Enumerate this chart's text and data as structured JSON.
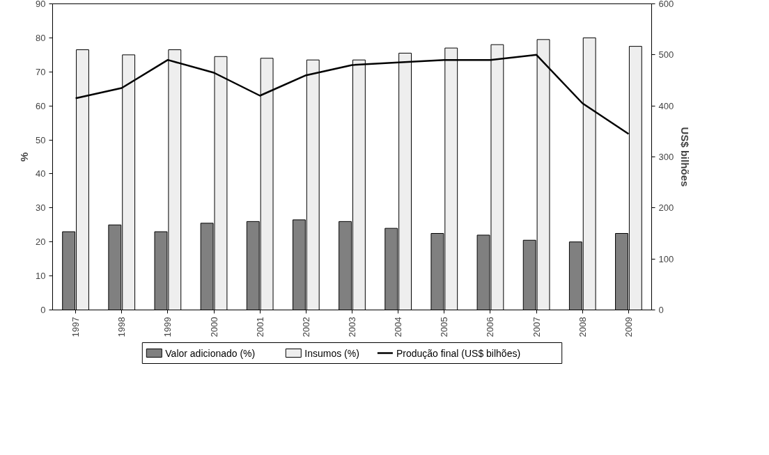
{
  "chart_data": {
    "type": "bar",
    "categories": [
      "1997",
      "1998",
      "1999",
      "2000",
      "2001",
      "2002",
      "2003",
      "2004",
      "2005",
      "2006",
      "2007",
      "2008",
      "2009"
    ],
    "ylabel": "%",
    "y2label": "US$ bilhões",
    "ylim": [
      0,
      90
    ],
    "yticks": [
      0,
      10,
      20,
      30,
      40,
      50,
      60,
      70,
      80,
      90
    ],
    "y2lim": [
      0,
      600
    ],
    "y2ticks": [
      0,
      100,
      200,
      300,
      400,
      500,
      600
    ],
    "legend": "bottom",
    "grid": false,
    "series": [
      {
        "name": "Valor adicionado (%)",
        "color": "#808080",
        "values": [
          23,
          25,
          23,
          25.5,
          26,
          26.5,
          26,
          24,
          22.5,
          22,
          20.5,
          20,
          22.5
        ]
      },
      {
        "name": "Insumos (%)",
        "color": "#eeeeee",
        "values": [
          76.5,
          75,
          76.5,
          74.5,
          74,
          73.5,
          73.5,
          75.5,
          77,
          78,
          79.5,
          80,
          77.5
        ]
      },
      {
        "name": "Produção final (US$ bilhões)",
        "type": "line",
        "axis": "y2",
        "color": "#000000",
        "values": [
          415,
          435,
          490,
          465,
          420,
          460,
          480,
          485,
          490,
          490,
          500,
          405,
          345
        ]
      }
    ]
  }
}
